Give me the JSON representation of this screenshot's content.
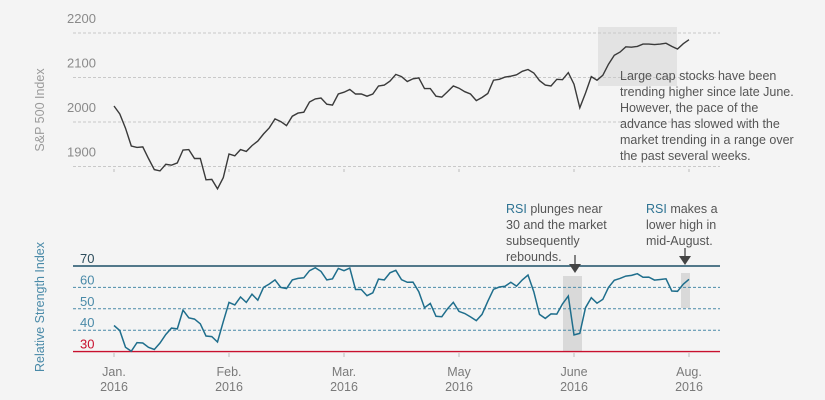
{
  "colors": {
    "background": "#f4f4f4",
    "price_line": "#3a3a3a",
    "rsi_line": "#1f6e8c",
    "overbought_line": "#1c4f66",
    "oversold_line": "#c8102e",
    "rsi_dashed": "#4a8aa8",
    "highlight": "#e3e3e3",
    "highlight_rsi": "#d9d9d9"
  },
  "chart_data": [
    {
      "type": "line",
      "ylabel": "S&P 500 Index",
      "ylim": [
        1850,
        2210
      ],
      "yticks": [
        "2200",
        "2100",
        "2000",
        "1900"
      ],
      "ytick_values": [
        2200,
        2100,
        2000,
        1900
      ],
      "grid": "dashed horizontal",
      "x_tick_labels": [
        {
          "month": "Jan.",
          "year": "2016"
        },
        {
          "month": "Feb.",
          "year": "2016"
        },
        {
          "month": "Mar.",
          "year": "2016"
        },
        {
          "month": "May",
          "year": "2016"
        },
        {
          "month": "June",
          "year": "2016"
        },
        {
          "month": "Aug.",
          "year": "2016"
        }
      ],
      "values": [
        2036,
        2018,
        1986,
        1946,
        1943,
        1944,
        1918,
        1893,
        1890,
        1905,
        1903,
        1908,
        1937,
        1938,
        1918,
        1918,
        1870,
        1871,
        1850,
        1875,
        1928,
        1924,
        1938,
        1934,
        1947,
        1957,
        1973,
        1987,
        2007,
        2001,
        1992,
        2013,
        2020,
        2022,
        2045,
        2052,
        2054,
        2040,
        2038,
        2063,
        2067,
        2073,
        2063,
        2063,
        2058,
        2063,
        2081,
        2083,
        2092,
        2107,
        2102,
        2091,
        2097,
        2099,
        2075,
        2075,
        2058,
        2056,
        2068,
        2081,
        2076,
        2068,
        2063,
        2048,
        2055,
        2064,
        2094,
        2096,
        2101,
        2103,
        2106,
        2114,
        2118,
        2110,
        2093,
        2083,
        2081,
        2096,
        2095,
        2111,
        2085,
        2032,
        2065,
        2102,
        2094,
        2105,
        2130,
        2150,
        2157,
        2169,
        2168,
        2170,
        2175,
        2175,
        2174,
        2175,
        2177,
        2170,
        2164,
        2176,
        2185
      ],
      "highlight": "late June to mid-August range",
      "annotation": "Large cap stocks have been trending higher since late June. However, the pace of the advance has slowed with the market trending in a range over the past several weeks."
    },
    {
      "type": "line",
      "ylabel": "Relative Strength Index",
      "ylim": [
        30,
        70
      ],
      "yticks": [
        "70",
        "60",
        "50",
        "40",
        "30"
      ],
      "ytick_values": [
        70,
        60,
        50,
        40,
        30
      ],
      "values": [
        42.2,
        39.8,
        32,
        30.2,
        34.2,
        34,
        32,
        31,
        34,
        38,
        41,
        40.6,
        49.4,
        45.8,
        45.2,
        43,
        37.3,
        37,
        34.5,
        44,
        53,
        51.8,
        55.5,
        53,
        56.8,
        54,
        60,
        61.6,
        63.5,
        60,
        59.5,
        63.5,
        64.2,
        64.5,
        67.8,
        69.2,
        67.5,
        63.5,
        64,
        68.9,
        67.8,
        69,
        59,
        59,
        56.1,
        57.5,
        63.9,
        63.5,
        66.8,
        68,
        63.6,
        62.4,
        62.5,
        58,
        50.5,
        52.5,
        46.5,
        46.3,
        50,
        53,
        48.8,
        47.8,
        46.2,
        44.5,
        47.4,
        53.5,
        59.1,
        60.2,
        60.5,
        62.4,
        60.6,
        63.5,
        65.8,
        58,
        47.4,
        45.5,
        47.6,
        47.5,
        52.3,
        56,
        37.8,
        38.5,
        50.5,
        55.2,
        52.6,
        54.4,
        60,
        63.3,
        64.2,
        65.3,
        65.6,
        66.4,
        64.7,
        64.8,
        63.4,
        63.7,
        64,
        58.3,
        58.2,
        61.5,
        63.8
      ],
      "annotations": [
        {
          "highlight": "RSI",
          "text": [
            "plunges near",
            "30 and the market",
            "subsequently",
            "rebounds."
          ]
        },
        {
          "highlight": "RSI",
          "text": [
            "makes a",
            "lower high in",
            "mid-August."
          ]
        }
      ]
    }
  ],
  "top_annotation_lines": [
    "Large cap stocks have been",
    "trending higher since late June.",
    "However, the pace of the",
    "advance has slowed with the",
    "market trending in a range over",
    "the past several weeks."
  ]
}
